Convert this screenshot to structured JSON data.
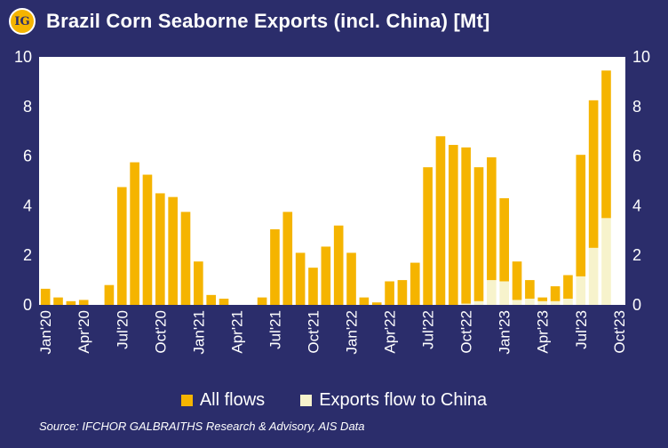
{
  "title": "Brazil Corn Seaborne Exports (incl. China) [Mt]",
  "logo": {
    "text": "IG"
  },
  "source": "Source: IFCHOR GALBRAITHS Research & Advisory, AIS Data",
  "colors": {
    "background": "#2b2d6b",
    "plot_bg": "#ffffff",
    "all_flows": "#f5b400",
    "china": "#f7f3cc"
  },
  "chart_data": {
    "type": "bar",
    "stacked": true,
    "x_ticks": [
      "Jan'20",
      "Apr'20",
      "Jul'20",
      "Oct'20",
      "Jan'21",
      "Apr'21",
      "Jul'21",
      "Oct'21",
      "Jan'22",
      "Apr'22",
      "Jul'22",
      "Oct'22",
      "Jan'23",
      "Apr'23",
      "Jul'23",
      "Oct'23"
    ],
    "categories": [
      "Jan'20",
      "Feb'20",
      "Mar'20",
      "Apr'20",
      "May'20",
      "Jun'20",
      "Jul'20",
      "Aug'20",
      "Sep'20",
      "Oct'20",
      "Nov'20",
      "Dec'20",
      "Jan'21",
      "Feb'21",
      "Mar'21",
      "Apr'21",
      "May'21",
      "Jun'21",
      "Jul'21",
      "Aug'21",
      "Sep'21",
      "Oct'21",
      "Nov'21",
      "Dec'21",
      "Jan'22",
      "Feb'22",
      "Mar'22",
      "Apr'22",
      "May'22",
      "Jun'22",
      "Jul'22",
      "Aug'22",
      "Sep'22",
      "Oct'22",
      "Nov'22",
      "Dec'22",
      "Jan'23",
      "Feb'23",
      "Mar'23",
      "Apr'23",
      "May'23",
      "Jun'23",
      "Jul'23",
      "Aug'23",
      "Sep'23",
      "Oct'23"
    ],
    "series": [
      {
        "name": "All flows",
        "values": [
          0.65,
          0.3,
          0.15,
          0.2,
          0,
          0.8,
          4.75,
          5.75,
          5.25,
          4.5,
          4.35,
          3.75,
          1.75,
          0.4,
          0.25,
          0,
          0,
          0.3,
          3.05,
          3.75,
          2.1,
          1.5,
          2.35,
          3.2,
          2.1,
          0.3,
          0.1,
          0.95,
          1.0,
          1.7,
          5.55,
          6.8,
          6.45,
          6.3,
          5.4,
          4.95,
          3.35,
          1.55,
          0.75,
          0.15,
          0.6,
          0.95,
          4.9,
          5.95,
          5.95,
          0
        ]
      },
      {
        "name": "Exports flow to China",
        "values": [
          0,
          0,
          0,
          0,
          0,
          0,
          0,
          0,
          0,
          0,
          0,
          0,
          0,
          0,
          0,
          0,
          0,
          0,
          0,
          0,
          0,
          0,
          0,
          0,
          0,
          0,
          0,
          0,
          0,
          0,
          0,
          0,
          0,
          0.05,
          0.15,
          1.0,
          0.95,
          0.2,
          0.25,
          0.15,
          0.15,
          0.25,
          1.15,
          2.3,
          3.5,
          0
        ]
      }
    ],
    "ylim": [
      0,
      10
    ],
    "y_ticks": [
      0,
      2,
      4,
      6,
      8,
      10
    ],
    "legend": "bottom",
    "grid": false
  }
}
